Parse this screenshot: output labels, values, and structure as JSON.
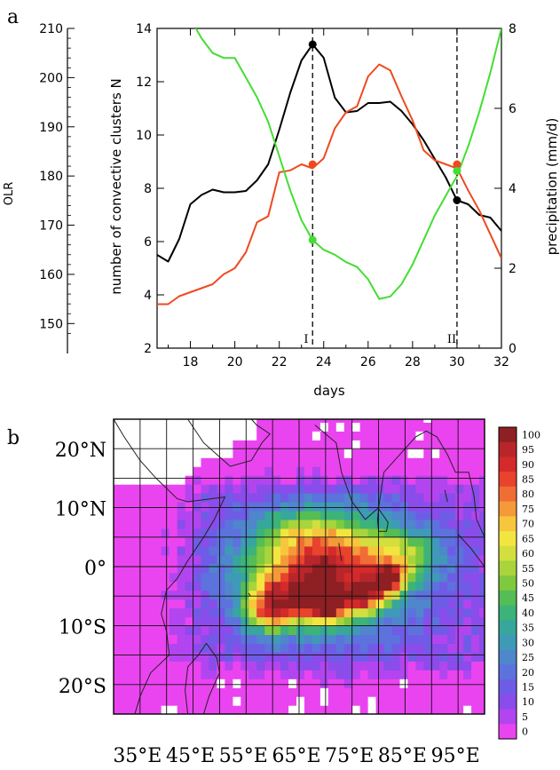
{
  "panel_a": {
    "letter": "a",
    "ylabel_olr": "OLR",
    "ylabel_clusters": "number of convective clusters N",
    "ylabel_precip": "precipitation (mm/d)",
    "xlabel": "days",
    "marker_I": "I",
    "marker_II": "II"
  },
  "panel_b": {
    "letter": "b",
    "colorbar_ticks": [
      "100",
      "95",
      "90",
      "85",
      "80",
      "75",
      "70",
      "65",
      "60",
      "55",
      "50",
      "45",
      "40",
      "35",
      "30",
      "25",
      "20",
      "15",
      "10",
      "5",
      "0"
    ]
  },
  "chart_data": [
    {
      "type": "line",
      "xlabel": "days",
      "xlim": [
        16.5,
        32
      ],
      "x_ticks": [
        18,
        20,
        22,
        24,
        26,
        28,
        30,
        32
      ],
      "axes": {
        "clusters": {
          "label": "number of convective clusters N",
          "lim": [
            2,
            14
          ],
          "ticks": [
            2,
            4,
            6,
            8,
            10,
            12,
            14
          ]
        },
        "precip": {
          "label": "precipitation (mm/d)",
          "lim": [
            0,
            8
          ],
          "ticks": [
            0,
            2,
            4,
            6,
            8
          ]
        },
        "olr": {
          "label": "OLR",
          "lim": [
            145,
            210
          ],
          "ticks": [
            150,
            160,
            170,
            180,
            190,
            200,
            210
          ]
        }
      },
      "series": [
        {
          "color": "#000000",
          "axis": "clusters",
          "points": [
            [
              16.5,
              5.5
            ],
            [
              17,
              5.25
            ],
            [
              17.5,
              6.1
            ],
            [
              18,
              7.4
            ],
            [
              18.5,
              7.75
            ],
            [
              19,
              7.95
            ],
            [
              19.5,
              7.85
            ],
            [
              20,
              7.85
            ],
            [
              20.5,
              7.9
            ],
            [
              21,
              8.3
            ],
            [
              21.5,
              8.9
            ],
            [
              22,
              10.2
            ],
            [
              22.5,
              11.6
            ],
            [
              23,
              12.8
            ],
            [
              23.5,
              13.4
            ],
            [
              24,
              12.9
            ],
            [
              24.5,
              11.4
            ],
            [
              25,
              10.85
            ],
            [
              25.5,
              10.9
            ],
            [
              26,
              11.2
            ],
            [
              26.5,
              11.2
            ],
            [
              27,
              11.25
            ],
            [
              27.5,
              10.9
            ],
            [
              28,
              10.4
            ],
            [
              28.5,
              9.8
            ],
            [
              29,
              9.1
            ],
            [
              29.5,
              8.4
            ],
            [
              30,
              7.55
            ],
            [
              30.5,
              7.4
            ],
            [
              31,
              7.0
            ],
            [
              31.5,
              6.9
            ],
            [
              32,
              6.4
            ]
          ]
        },
        {
          "color": "#ee4a21",
          "axis": "precip",
          "points": [
            [
              16.5,
              1.1
            ],
            [
              17,
              1.1
            ],
            [
              17.5,
              1.3
            ],
            [
              18,
              1.4
            ],
            [
              18.5,
              1.5
            ],
            [
              19,
              1.6
            ],
            [
              19.5,
              1.85
            ],
            [
              20,
              2.0
            ],
            [
              20.5,
              2.4
            ],
            [
              21,
              3.15
            ],
            [
              21.5,
              3.3
            ],
            [
              22,
              4.4
            ],
            [
              22.5,
              4.45
            ],
            [
              23,
              4.6
            ],
            [
              23.5,
              4.5
            ],
            [
              24,
              4.75
            ],
            [
              24.5,
              5.5
            ],
            [
              25,
              5.9
            ],
            [
              25.5,
              6.05
            ],
            [
              26,
              6.8
            ],
            [
              26.5,
              7.1
            ],
            [
              27,
              6.95
            ],
            [
              27.5,
              6.3
            ],
            [
              28,
              5.7
            ],
            [
              28.5,
              4.95
            ],
            [
              29,
              4.7
            ],
            [
              29.5,
              4.6
            ],
            [
              30,
              4.5
            ],
            [
              30.5,
              3.95
            ],
            [
              31,
              3.45
            ],
            [
              31.5,
              2.85
            ],
            [
              32,
              2.25
            ]
          ]
        },
        {
          "color": "#44dd33",
          "axis": "olr",
          "points": [
            [
              16.5,
              218
            ],
            [
              17,
              215
            ],
            [
              17.5,
              213
            ],
            [
              18,
              212
            ],
            [
              18.5,
              208
            ],
            [
              19,
              205
            ],
            [
              19.5,
              204
            ],
            [
              20,
              204
            ],
            [
              20.5,
              200
            ],
            [
              21,
              196
            ],
            [
              21.5,
              191
            ],
            [
              22,
              184
            ],
            [
              22.5,
              177
            ],
            [
              23,
              171
            ],
            [
              23.5,
              167
            ],
            [
              24,
              165
            ],
            [
              24.5,
              164
            ],
            [
              25,
              162.5
            ],
            [
              25.5,
              161.5
            ],
            [
              26,
              159
            ],
            [
              26.5,
              155
            ],
            [
              27,
              155.5
            ],
            [
              27.5,
              158
            ],
            [
              28,
              162
            ],
            [
              28.5,
              167
            ],
            [
              29,
              172
            ],
            [
              29.5,
              176
            ],
            [
              30,
              180
            ],
            [
              30.5,
              186
            ],
            [
              31,
              193
            ],
            [
              31.5,
              201
            ],
            [
              32,
              210
            ]
          ]
        }
      ],
      "markers": [
        {
          "color": "#000000",
          "axis": "clusters",
          "x": 23.5,
          "y": 13.4
        },
        {
          "color": "#ee4a21",
          "axis": "precip",
          "x": 23.5,
          "y": 4.6
        },
        {
          "color": "#44dd33",
          "axis": "olr",
          "x": 23.5,
          "y": 167
        },
        {
          "color": "#000000",
          "axis": "clusters",
          "x": 30,
          "y": 7.55
        },
        {
          "color": "#ee4a21",
          "axis": "precip",
          "x": 30,
          "y": 4.6
        },
        {
          "color": "#44dd33",
          "axis": "olr",
          "x": 30,
          "y": 181
        }
      ],
      "vlines": [
        23.5,
        30
      ]
    },
    {
      "type": "heatmap",
      "lon_range": [
        30,
        100
      ],
      "lat_range": [
        -25,
        25
      ],
      "lon_ticks": [
        "35°E",
        "45°E",
        "55°E",
        "65°E",
        "75°E",
        "85°E",
        "95°E"
      ],
      "lat_ticks": [
        "20°N",
        "10°N",
        "0°",
        "10°S",
        "20°S"
      ],
      "grid_spacing_deg": 5,
      "value_range": [
        0,
        100
      ],
      "colorbar": {
        "values": [
          0,
          5,
          10,
          15,
          20,
          25,
          30,
          35,
          40,
          45,
          50,
          55,
          60,
          65,
          70,
          75,
          80,
          85,
          90,
          95,
          100
        ],
        "colors": [
          "#ea44f0",
          "#b245ef",
          "#8a4cea",
          "#6f5ce6",
          "#5c72dd",
          "#4f86cc",
          "#3f9ab8",
          "#36a79a",
          "#3cb378",
          "#55bd55",
          "#7ec93e",
          "#a9d43b",
          "#d3de3f",
          "#f3e53f",
          "#f7c63c",
          "#f49a38",
          "#f06d34",
          "#e9422d",
          "#d42a2a",
          "#b8262b",
          "#8e1f23"
        ]
      },
      "mask_color": "#ffffff"
    }
  ]
}
